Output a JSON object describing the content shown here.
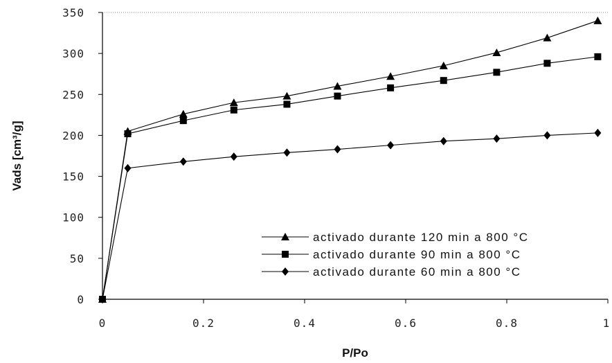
{
  "chart_data": {
    "type": "line",
    "xlabel": "P/Po",
    "ylabel": "Vads [cm³/g]",
    "xlim": [
      0,
      1
    ],
    "ylim": [
      0,
      350
    ],
    "x_ticks": [
      "0",
      "0.2",
      "0.4",
      "0.6",
      "0.8",
      "1"
    ],
    "y_ticks": [
      "0",
      "50",
      "100",
      "150",
      "200",
      "250",
      "300",
      "350"
    ],
    "grid": false,
    "legend_position": "bottom-right",
    "series": [
      {
        "name": "activado durante 120 min a 800 °C",
        "marker": "triangle",
        "x": [
          0,
          0.05,
          0.16,
          0.26,
          0.365,
          0.465,
          0.57,
          0.675,
          0.78,
          0.88,
          0.98
        ],
        "y": [
          0,
          205,
          226,
          240,
          248,
          260,
          272,
          285,
          301,
          319,
          340
        ]
      },
      {
        "name": "activado durante 90 min a 800 °C",
        "marker": "square",
        "x": [
          0,
          0.05,
          0.16,
          0.26,
          0.365,
          0.465,
          0.57,
          0.675,
          0.78,
          0.88,
          0.98
        ],
        "y": [
          0,
          202,
          218,
          231,
          238,
          248,
          258,
          267,
          277,
          288,
          296
        ]
      },
      {
        "name": "activado durante 60 min a 800 °C",
        "marker": "diamond",
        "x": [
          0,
          0.05,
          0.16,
          0.26,
          0.365,
          0.465,
          0.57,
          0.675,
          0.78,
          0.88,
          0.98
        ],
        "y": [
          0,
          160,
          168,
          174,
          179,
          183,
          188,
          193,
          196,
          200,
          203
        ]
      }
    ]
  }
}
